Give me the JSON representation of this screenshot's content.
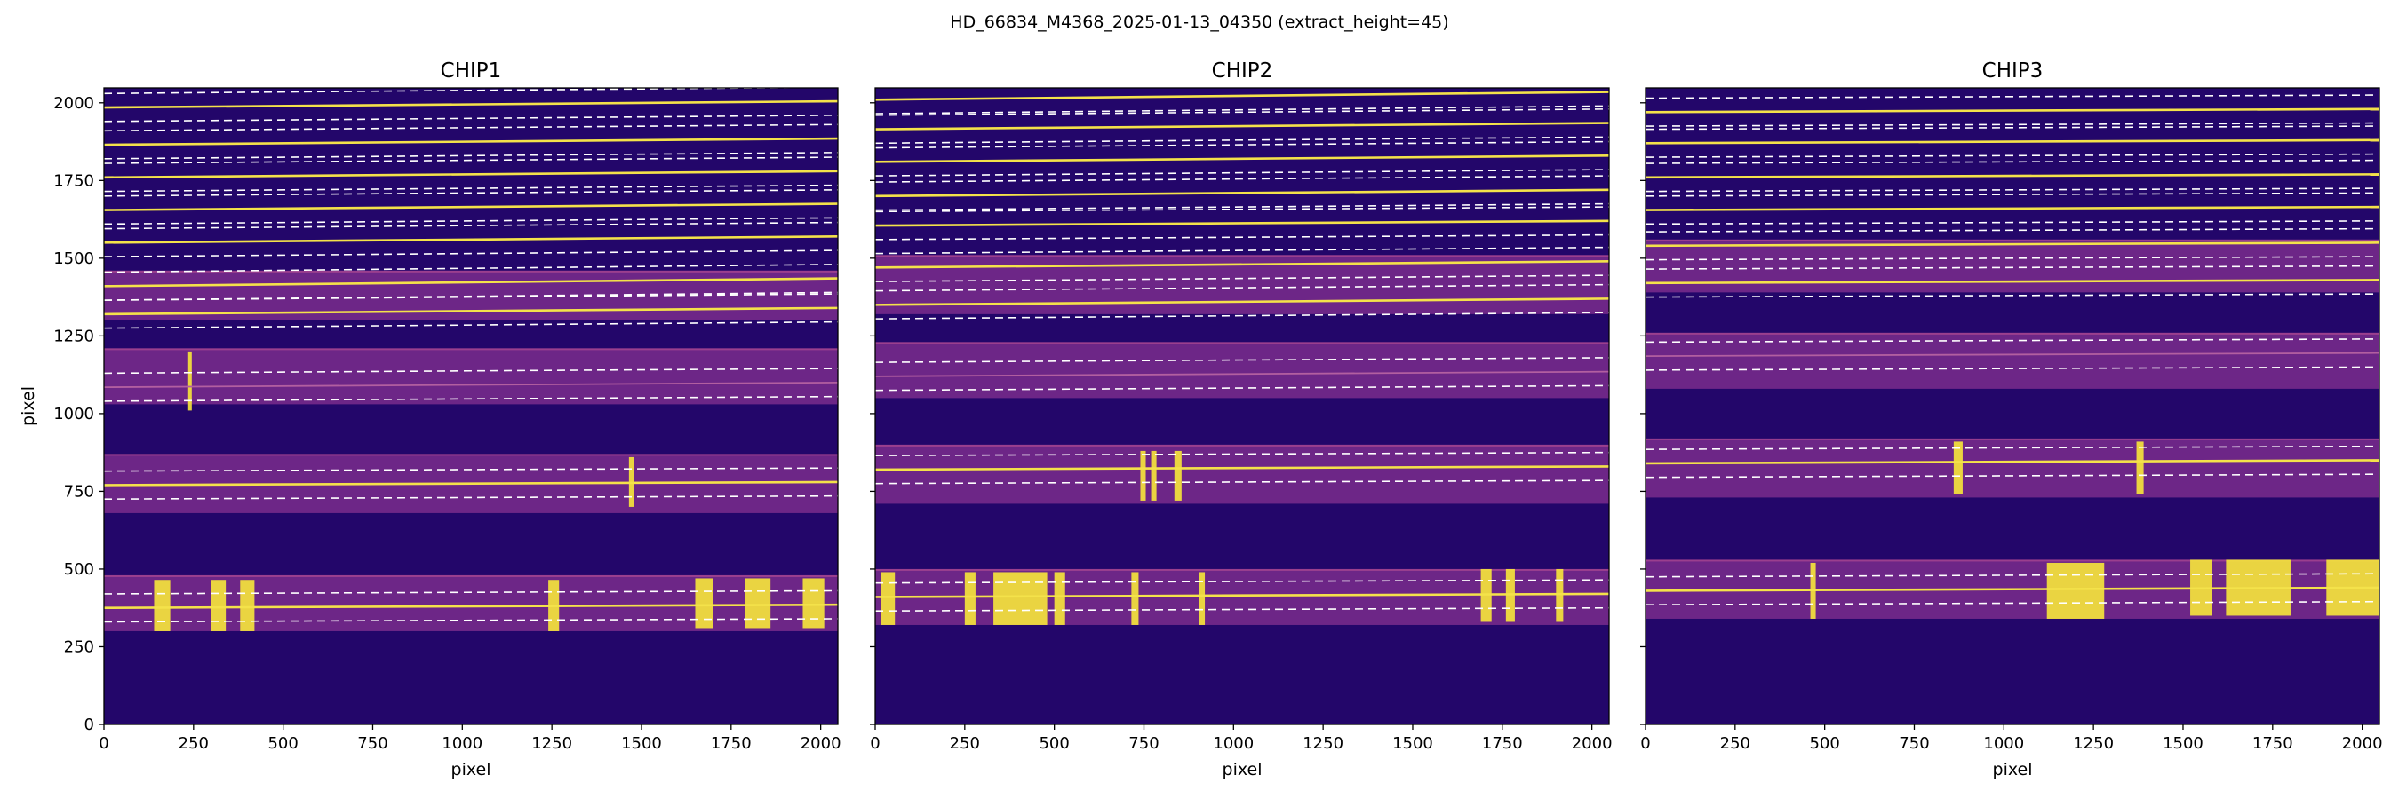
{
  "figure": {
    "suptitle": "HD_66834_M4368_2025-01-13_04350  (extract_height=45)"
  },
  "colors": {
    "background": "#23066a",
    "order_band": "#7a2d8c",
    "order_band_edge": "#9b3f8e",
    "trace_line": "#f4e24a",
    "extraction_bound": "#ffffff",
    "bright_feature": "#f7e83a",
    "axis": "#000000"
  },
  "chart_data": [
    {
      "type": "heatmap",
      "title": "CHIP1",
      "xlabel": "pixel",
      "ylabel": "pixel",
      "xlim": [
        0,
        2048
      ],
      "ylim": [
        0,
        2048
      ],
      "xticks": [
        0,
        250,
        500,
        750,
        1000,
        1250,
        1500,
        1750,
        2000
      ],
      "yticks": [
        0,
        250,
        500,
        750,
        1000,
        1250,
        1500,
        1750,
        2000
      ],
      "colormap": "plasma",
      "extract_height": 45,
      "orders": [
        {
          "trace": [
            1985,
            2005
          ],
          "bright": true
        },
        {
          "trace": [
            1865,
            1885
          ],
          "bright": true
        },
        {
          "trace": [
            1760,
            1780
          ],
          "bright": true
        },
        {
          "trace": [
            1655,
            1675
          ],
          "bright": true
        },
        {
          "trace": [
            1550,
            1570
          ],
          "bright": true
        },
        {
          "trace": [
            1410,
            1435
          ],
          "bright": true
        },
        {
          "trace": [
            1320,
            1340
          ],
          "bright": true
        },
        {
          "trace": [
            1085,
            1100
          ],
          "bright": false
        },
        {
          "trace": [
            770,
            780
          ],
          "bright": true
        },
        {
          "trace": [
            375,
            385
          ],
          "bright": true
        }
      ],
      "bands": [
        {
          "y0": 1300,
          "y1": 1460
        },
        {
          "y0": 1030,
          "y1": 1210
        },
        {
          "y0": 680,
          "y1": 870
        },
        {
          "y0": 300,
          "y1": 480
        }
      ],
      "bright_lines": [
        {
          "x": 140,
          "w": 45,
          "y0": 300,
          "y1": 465
        },
        {
          "x": 300,
          "w": 40,
          "y0": 300,
          "y1": 465
        },
        {
          "x": 380,
          "w": 40,
          "y0": 300,
          "y1": 465
        },
        {
          "x": 1240,
          "w": 30,
          "y0": 300,
          "y1": 465
        },
        {
          "x": 1650,
          "w": 50,
          "y0": 310,
          "y1": 470
        },
        {
          "x": 1790,
          "w": 70,
          "y0": 310,
          "y1": 470
        },
        {
          "x": 1950,
          "w": 60,
          "y0": 310,
          "y1": 470
        },
        {
          "x": 1465,
          "w": 15,
          "y0": 700,
          "y1": 860
        },
        {
          "x": 235,
          "w": 10,
          "y0": 1010,
          "y1": 1200
        }
      ]
    },
    {
      "type": "heatmap",
      "title": "CHIP2",
      "xlabel": "pixel",
      "ylabel": "",
      "xlim": [
        0,
        2048
      ],
      "ylim": [
        0,
        2048
      ],
      "xticks": [
        0,
        250,
        500,
        750,
        1000,
        1250,
        1500,
        1750,
        2000
      ],
      "yticks": [
        0,
        250,
        500,
        750,
        1000,
        1250,
        1500,
        1750,
        2000
      ],
      "colormap": "plasma",
      "extract_height": 45,
      "orders": [
        {
          "trace": [
            2010,
            2035
          ],
          "bright": true
        },
        {
          "trace": [
            1915,
            1935
          ],
          "bright": true
        },
        {
          "trace": [
            1810,
            1830
          ],
          "bright": true
        },
        {
          "trace": [
            1700,
            1720
          ],
          "bright": true
        },
        {
          "trace": [
            1605,
            1620
          ],
          "bright": true
        },
        {
          "trace": [
            1470,
            1490
          ],
          "bright": true
        },
        {
          "trace": [
            1350,
            1370
          ],
          "bright": true
        },
        {
          "trace": [
            1120,
            1135
          ],
          "bright": false
        },
        {
          "trace": [
            820,
            830
          ],
          "bright": true
        },
        {
          "trace": [
            410,
            420
          ],
          "bright": true
        }
      ],
      "bands": [
        {
          "y0": 1320,
          "y1": 1510
        },
        {
          "y0": 1050,
          "y1": 1230
        },
        {
          "y0": 710,
          "y1": 900
        },
        {
          "y0": 320,
          "y1": 500
        }
      ],
      "bright_lines": [
        {
          "x": 15,
          "w": 40,
          "y0": 320,
          "y1": 490
        },
        {
          "x": 250,
          "w": 30,
          "y0": 320,
          "y1": 490
        },
        {
          "x": 330,
          "w": 150,
          "y0": 320,
          "y1": 490
        },
        {
          "x": 500,
          "w": 30,
          "y0": 320,
          "y1": 490
        },
        {
          "x": 715,
          "w": 20,
          "y0": 320,
          "y1": 490
        },
        {
          "x": 905,
          "w": 15,
          "y0": 320,
          "y1": 490
        },
        {
          "x": 1690,
          "w": 30,
          "y0": 330,
          "y1": 500
        },
        {
          "x": 1760,
          "w": 25,
          "y0": 330,
          "y1": 500
        },
        {
          "x": 1900,
          "w": 20,
          "y0": 330,
          "y1": 500
        },
        {
          "x": 740,
          "w": 15,
          "y0": 720,
          "y1": 880
        },
        {
          "x": 770,
          "w": 15,
          "y0": 720,
          "y1": 880
        },
        {
          "x": 835,
          "w": 20,
          "y0": 720,
          "y1": 880
        }
      ]
    },
    {
      "type": "heatmap",
      "title": "CHIP3",
      "xlabel": "pixel",
      "ylabel": "",
      "xlim": [
        0,
        2048
      ],
      "ylim": [
        0,
        2048
      ],
      "xticks": [
        0,
        250,
        500,
        750,
        1000,
        1250,
        1500,
        1750,
        2000
      ],
      "yticks": [
        0,
        250,
        500,
        750,
        1000,
        1250,
        1500,
        1750,
        2000
      ],
      "colormap": "plasma",
      "extract_height": 45,
      "orders": [
        {
          "trace": [
            1970,
            1980
          ],
          "bright": true
        },
        {
          "trace": [
            1870,
            1880
          ],
          "bright": true
        },
        {
          "trace": [
            1760,
            1770
          ],
          "bright": true
        },
        {
          "trace": [
            1655,
            1665
          ],
          "bright": true
        },
        {
          "trace": [
            1540,
            1550
          ],
          "bright": true
        },
        {
          "trace": [
            1420,
            1430
          ],
          "bright": true
        },
        {
          "trace": [
            1185,
            1195
          ],
          "bright": false
        },
        {
          "trace": [
            840,
            850
          ],
          "bright": true
        },
        {
          "trace": [
            430,
            440
          ],
          "bright": true
        }
      ],
      "bands": [
        {
          "y0": 1390,
          "y1": 1560
        },
        {
          "y0": 1080,
          "y1": 1260
        },
        {
          "y0": 730,
          "y1": 920
        },
        {
          "y0": 340,
          "y1": 530
        }
      ],
      "bright_lines": [
        {
          "x": 460,
          "w": 15,
          "y0": 340,
          "y1": 520
        },
        {
          "x": 1120,
          "w": 160,
          "y0": 340,
          "y1": 520
        },
        {
          "x": 1520,
          "w": 60,
          "y0": 350,
          "y1": 530
        },
        {
          "x": 1620,
          "w": 180,
          "y0": 350,
          "y1": 530
        },
        {
          "x": 1900,
          "w": 150,
          "y0": 350,
          "y1": 530
        },
        {
          "x": 860,
          "w": 25,
          "y0": 740,
          "y1": 910
        },
        {
          "x": 1370,
          "w": 20,
          "y0": 740,
          "y1": 910
        }
      ]
    }
  ]
}
